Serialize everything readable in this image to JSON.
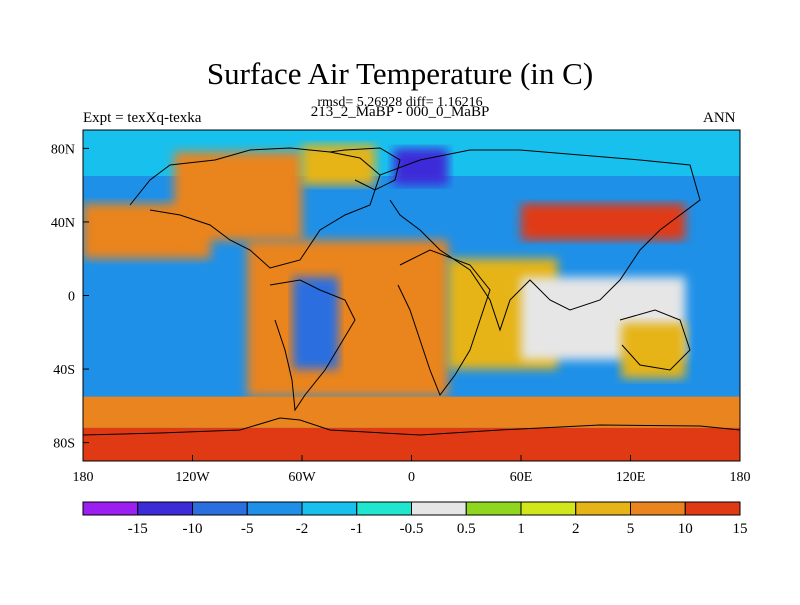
{
  "header": {
    "title": "Surface Air Temperature (in C)",
    "stats_line": "rmsd= 5.26928 diff= 1.16216",
    "left_label": "Expt = texXq-texka",
    "center_label": "213_2_MaBP - 000_0_MaBP",
    "right_label": "ANN"
  },
  "chart_data": {
    "type": "heatmap",
    "title": "Surface Air Temperature (in C)",
    "subtitle": "213_2_MaBP - 000_0_MaBP",
    "x_range": [
      -180,
      180
    ],
    "y_range": [
      -90,
      90
    ],
    "x_ticks": [
      {
        "value": -180,
        "label": "180"
      },
      {
        "value": -120,
        "label": "120W"
      },
      {
        "value": -60,
        "label": "60W"
      },
      {
        "value": 0,
        "label": "0"
      },
      {
        "value": 60,
        "label": "60E"
      },
      {
        "value": 120,
        "label": "120E"
      },
      {
        "value": 180,
        "label": "180"
      }
    ],
    "y_ticks": [
      {
        "value": 80,
        "label": "80N"
      },
      {
        "value": 40,
        "label": "40N"
      },
      {
        "value": 0,
        "label": "0"
      },
      {
        "value": -40,
        "label": "40S"
      },
      {
        "value": -80,
        "label": "80S"
      }
    ],
    "colorbar": {
      "colors": [
        "#9b1ff0",
        "#3c2cd8",
        "#2a6ee0",
        "#1e90e8",
        "#18c0ee",
        "#20e6d0",
        "#e6e6e6",
        "#8fd61e",
        "#d2e61c",
        "#e6b416",
        "#ea841e",
        "#e03a14"
      ],
      "labels": [
        "-15",
        "-10",
        "-5",
        "-2",
        "-1",
        "-0.5",
        "0.5",
        "1",
        "2",
        "5",
        "10",
        "15"
      ]
    },
    "regions": [
      {
        "name": "background",
        "color": "#1e90e8",
        "lon": [
          -180,
          180
        ],
        "lat": [
          -90,
          90
        ]
      },
      {
        "name": "north-pacific-band",
        "color": "#ea841e",
        "lon": [
          -180,
          -110
        ],
        "lat": [
          20,
          50
        ]
      },
      {
        "name": "arctic-ocean",
        "color": "#18c0ee",
        "lon": [
          -180,
          180
        ],
        "lat": [
          65,
          90
        ]
      },
      {
        "name": "north-america",
        "color": "#ea841e",
        "lon": [
          -130,
          -60
        ],
        "lat": [
          30,
          78
        ]
      },
      {
        "name": "greenland",
        "color": "#e6b416",
        "lon": [
          -60,
          -20
        ],
        "lat": [
          60,
          82
        ]
      },
      {
        "name": "siberia-cold",
        "color": "#3c2cd8",
        "lon": [
          -10,
          20
        ],
        "lat": [
          60,
          80
        ]
      },
      {
        "name": "asia-warm",
        "color": "#e03a14",
        "lon": [
          60,
          150
        ],
        "lat": [
          30,
          50
        ]
      },
      {
        "name": "south-atlantic-africa",
        "color": "#ea841e",
        "lon": [
          -90,
          20
        ],
        "lat": [
          -55,
          30
        ]
      },
      {
        "name": "south-america-cold",
        "color": "#2a6ee0",
        "lon": [
          -65,
          -40
        ],
        "lat": [
          -40,
          10
        ]
      },
      {
        "name": "indian-ocean",
        "color": "#e6b416",
        "lon": [
          20,
          80
        ],
        "lat": [
          -40,
          20
        ]
      },
      {
        "name": "maritime-neutral",
        "color": "#e6e6e6",
        "lon": [
          60,
          150
        ],
        "lat": [
          -35,
          10
        ]
      },
      {
        "name": "australia",
        "color": "#e6b416",
        "lon": [
          115,
          150
        ],
        "lat": [
          -45,
          -15
        ]
      },
      {
        "name": "southern-ocean-band",
        "color": "#ea841e",
        "lon": [
          -180,
          180
        ],
        "lat": [
          -72,
          -55
        ]
      },
      {
        "name": "antarctica",
        "color": "#e03a14",
        "lon": [
          -180,
          180
        ],
        "lat": [
          -90,
          -72
        ]
      }
    ]
  }
}
